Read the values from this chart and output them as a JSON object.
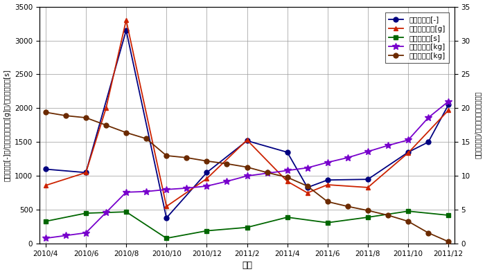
{
  "tick_positions": [
    0,
    2,
    4,
    6,
    8,
    10,
    12,
    14,
    16,
    18,
    20
  ],
  "tick_labels": [
    "2010/4",
    "2010/6",
    "2010/8",
    "2010/10",
    "2010/12",
    "2011/2",
    "2011/4",
    "2011/6",
    "2011/8",
    "2011/10",
    "2011/12"
  ],
  "pulse_x": [
    0,
    2,
    4,
    6,
    8,
    10,
    12,
    13,
    14,
    16,
    18,
    19,
    20
  ],
  "pulse_y": [
    1100,
    1050,
    3150,
    380,
    1050,
    1520,
    1350,
    830,
    940,
    950,
    1350,
    1500,
    2050
  ],
  "prop_x": [
    0,
    2,
    3,
    4,
    6,
    8,
    10,
    12,
    13,
    14,
    16,
    18,
    20
  ],
  "prop_y": [
    860,
    1050,
    2000,
    3300,
    550,
    960,
    1530,
    920,
    750,
    870,
    830,
    1340,
    1970
  ],
  "inj_x": [
    0,
    2,
    4,
    6,
    8,
    10,
    12,
    14,
    16,
    18,
    20
  ],
  "inj_y": [
    330,
    450,
    470,
    80,
    190,
    240,
    390,
    310,
    390,
    480,
    420
  ],
  "cum_x": [
    0,
    1,
    2,
    3,
    4,
    5,
    6,
    7,
    8,
    9,
    10,
    11,
    12,
    13,
    14,
    15,
    16,
    17,
    18,
    19,
    20
  ],
  "cum_y": [
    0.8,
    1.2,
    1.6,
    4.6,
    7.6,
    7.7,
    8.0,
    8.2,
    8.5,
    9.2,
    10.0,
    10.4,
    10.8,
    11.2,
    12.0,
    12.7,
    13.6,
    14.5,
    15.3,
    18.6,
    21.0
  ],
  "res_x": [
    0,
    1,
    2,
    3,
    4,
    5,
    6,
    7,
    8,
    9,
    10,
    11,
    12,
    13,
    14,
    15,
    16,
    17,
    18,
    19,
    20
  ],
  "res_y": [
    19.4,
    18.9,
    18.6,
    17.5,
    16.4,
    15.5,
    13.0,
    12.7,
    12.2,
    11.8,
    11.3,
    10.5,
    9.8,
    8.5,
    6.2,
    5.5,
    4.9,
    4.2,
    3.3,
    1.6,
    0.3
  ],
  "pulse_color": "#000080",
  "prop_color": "#CC2200",
  "inj_color": "#006600",
  "cum_color": "#7700CC",
  "res_color": "#6B2A00",
  "ylabel_left": "パルス数　[-]　/　推薬消費量　[g]　/　噴射時間　[s]",
  "ylabel_right": "累積消費量　/　残推薬量　［ｋｇ］",
  "xlabel": "年月",
  "legend_labels": [
    "パルス数　[-]",
    "推薬消費量　[g]",
    "噴射時間　[s]",
    "累積消費量[kg]",
    "残推薬量　[kg]"
  ],
  "ylim_left": [
    0,
    3500
  ],
  "ylim_right": [
    0,
    35
  ],
  "xlim": [
    -0.3,
    20.3
  ]
}
